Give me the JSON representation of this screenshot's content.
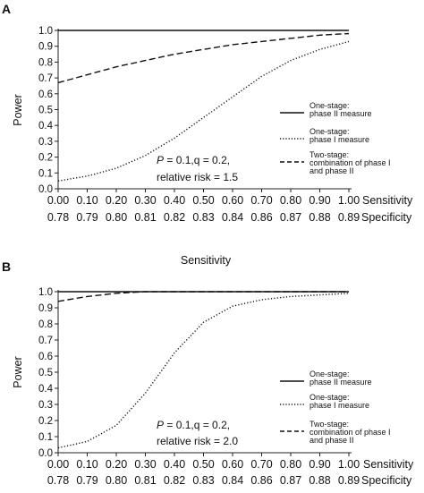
{
  "chart_data": [
    {
      "panel_label": "A",
      "type": "line",
      "ylabel": "Power",
      "ylim": [
        0,
        1.0
      ],
      "y_ticks": [
        "0.0",
        "0.1",
        "0.2",
        "0.3",
        "0.4",
        "0.5",
        "0.6",
        "0.7",
        "0.8",
        "0.9",
        "1.0"
      ],
      "sensitivity": [
        "0.00",
        "0.10",
        "0.20",
        "0.30",
        "0.40",
        "0.50",
        "0.60",
        "0.70",
        "0.80",
        "0.90",
        "1.00"
      ],
      "specificity": [
        "0.78",
        "0.79",
        "0.80",
        "0.81",
        "0.82",
        "0.83",
        "0.84",
        "0.86",
        "0.87",
        "0.88",
        "0.89"
      ],
      "sensitivity_label": "Sensitivity",
      "specificity_label": "Specificity",
      "x": [
        0,
        0.1,
        0.2,
        0.3,
        0.4,
        0.5,
        0.6,
        0.7,
        0.8,
        0.9,
        1.0
      ],
      "series": [
        {
          "name": "One-stage: phase II measure",
          "style": "solid",
          "values": [
            1.0,
            1.0,
            1.0,
            1.0,
            1.0,
            1.0,
            1.0,
            1.0,
            1.0,
            1.0,
            1.0
          ]
        },
        {
          "name": "One-stage: phase I measure",
          "style": "dotted",
          "values": [
            0.05,
            0.08,
            0.13,
            0.21,
            0.32,
            0.45,
            0.58,
            0.71,
            0.81,
            0.88,
            0.93
          ]
        },
        {
          "name": "Two-stage: combination of phase I and phase II",
          "style": "dashed",
          "values": [
            0.67,
            0.72,
            0.77,
            0.81,
            0.85,
            0.88,
            0.91,
            0.93,
            0.95,
            0.97,
            0.98
          ]
        }
      ],
      "legend": [
        {
          "lines": [
            "One-stage:",
            "phase II measure"
          ],
          "style": "solid"
        },
        {
          "lines": [
            "One-stage:",
            "phase I measure"
          ],
          "style": "dotted"
        },
        {
          "lines": [
            "Two-stage:",
            "combination of phase I",
            "and phase II"
          ],
          "style": "dashed"
        }
      ],
      "annotation": {
        "p": "P",
        "line1_rest": " = 0.1,q = 0.2,",
        "line2": "relative risk = 1.5"
      }
    },
    {
      "panel_label": "B",
      "type": "line",
      "ylabel": "Power",
      "ylim": [
        0,
        1.0
      ],
      "top_label": "Sensitivity",
      "y_ticks": [
        "0.0",
        "0.1",
        "0.2",
        "0.3",
        "0.4",
        "0.5",
        "0.6",
        "0.7",
        "0.8",
        "0.9",
        "1.0"
      ],
      "sensitivity": [
        "0.00",
        "0.10",
        "0.20",
        "0.30",
        "0.40",
        "0.50",
        "0.60",
        "0.70",
        "0.80",
        "0.90",
        "1.00"
      ],
      "specificity": [
        "0.78",
        "0.79",
        "0.80",
        "0.81",
        "0.82",
        "0.83",
        "0.84",
        "0.86",
        "0.87",
        "0.88",
        "0.89"
      ],
      "sensitivity_label": "Sensitivity",
      "specificity_label": "Specificity",
      "x": [
        0,
        0.1,
        0.2,
        0.3,
        0.4,
        0.5,
        0.6,
        0.7,
        0.8,
        0.9,
        1.0
      ],
      "series": [
        {
          "name": "One-stage: phase II measure",
          "style": "solid",
          "values": [
            1.0,
            1.0,
            1.0,
            1.0,
            1.0,
            1.0,
            1.0,
            1.0,
            1.0,
            1.0,
            1.0
          ]
        },
        {
          "name": "One-stage: phase I measure",
          "style": "dotted",
          "values": [
            0.03,
            0.07,
            0.17,
            0.37,
            0.62,
            0.81,
            0.91,
            0.95,
            0.97,
            0.98,
            0.99
          ]
        },
        {
          "name": "Two-stage: combination of phase I and phase II",
          "style": "dashed",
          "values": [
            0.94,
            0.97,
            0.99,
            1.0,
            1.0,
            1.0,
            1.0,
            1.0,
            1.0,
            1.0,
            1.0
          ]
        }
      ],
      "legend": [
        {
          "lines": [
            "One-stage:",
            "phase II measure"
          ],
          "style": "solid"
        },
        {
          "lines": [
            "One-stage:",
            "phase I measure"
          ],
          "style": "dotted"
        },
        {
          "lines": [
            "Two-stage:",
            "combination of phase I",
            "and phase II"
          ],
          "style": "dashed"
        }
      ],
      "annotation": {
        "p": "P",
        "line1_rest": " = 0.1,q = 0.2,",
        "line2": "relative risk = 2.0"
      }
    }
  ]
}
